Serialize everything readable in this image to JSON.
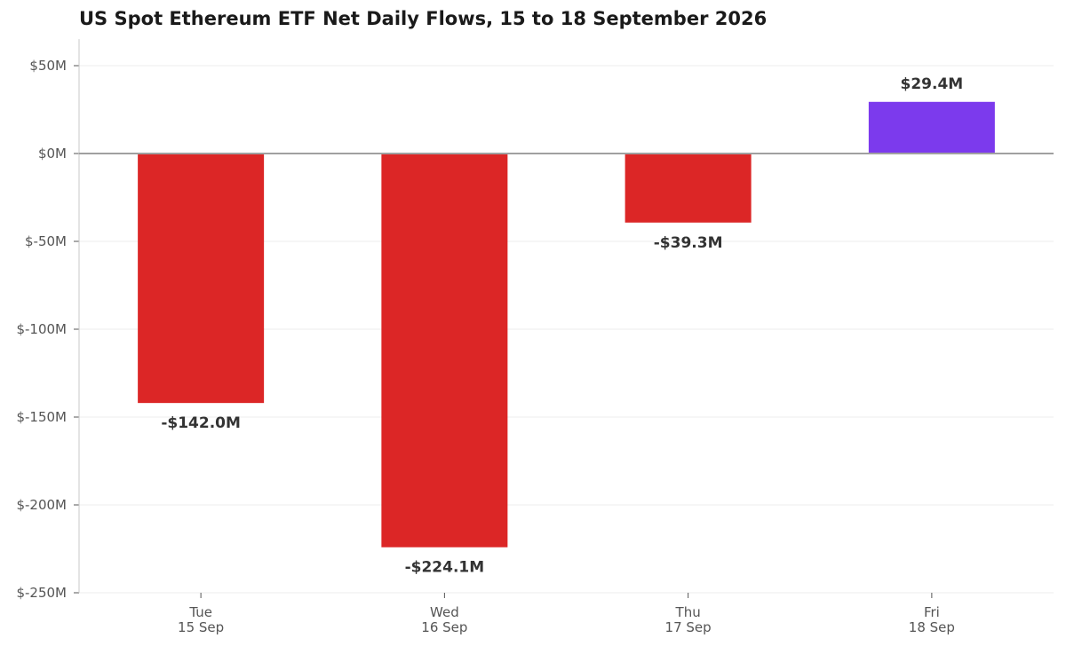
{
  "chart_data": {
    "type": "bar",
    "title": "US Spot Ethereum ETF Net Daily Flows, 15 to 18 September 2026",
    "xlabel": "",
    "ylabel": "",
    "categories": [
      [
        "Tue",
        "15 Sep"
      ],
      [
        "Wed",
        "16 Sep"
      ],
      [
        "Thu",
        "17 Sep"
      ],
      [
        "Fri",
        "18 Sep"
      ]
    ],
    "values": [
      -142.0,
      -224.1,
      -39.3,
      29.4
    ],
    "data_labels": [
      "-$142.0M",
      "-$224.1M",
      "-$39.3M",
      "$29.4M"
    ],
    "ylim": [
      -250,
      55
    ],
    "y_ticks": [
      50,
      0,
      -50,
      -100,
      -150,
      -200,
      -250
    ],
    "y_tick_labels": [
      "$50M",
      "$0M",
      "$-50M",
      "$-100M",
      "$-150M",
      "$-200M",
      "$-250M"
    ],
    "grid": true,
    "legend": "none",
    "colors": {
      "negative": "#dc2626",
      "positive": "#7c3aed",
      "zero_line": "#a0a0a0",
      "grid": "#ececec",
      "axis": "#c8c8c8"
    }
  }
}
